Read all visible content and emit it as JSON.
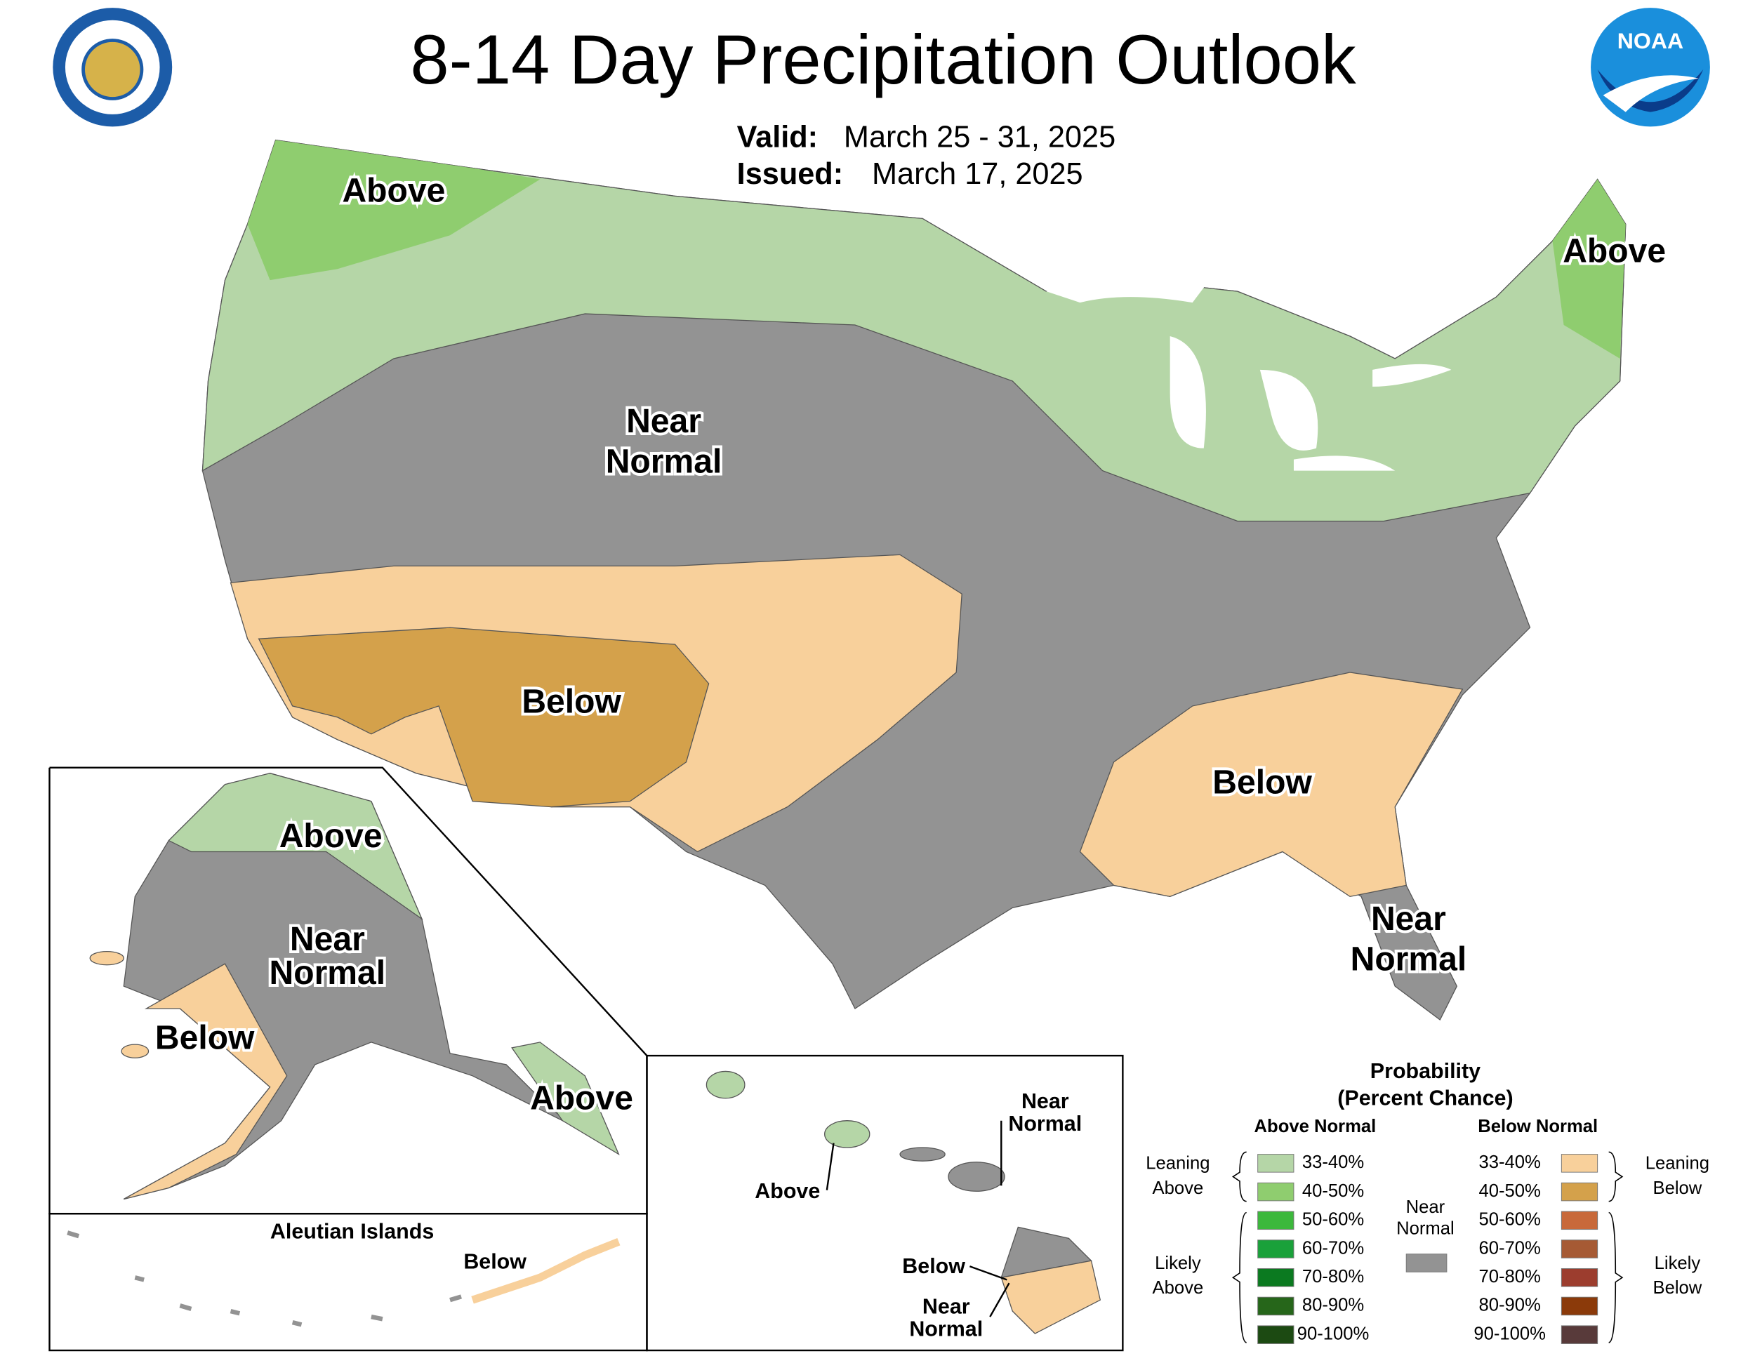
{
  "header": {
    "title": "8-14 Day Precipitation Outlook",
    "valid_label": "Valid:",
    "valid": "March 25 - 31, 2025",
    "issued_label": "Issued:",
    "issued": "March 17, 2025",
    "logo": "NOAA"
  },
  "map": {
    "conus": [
      {
        "lines": [
          "Above"
        ]
      },
      {
        "lines": [
          "Above"
        ]
      },
      {
        "lines": [
          "Near",
          "Normal"
        ]
      },
      {
        "lines": [
          "Below"
        ]
      },
      {
        "lines": [
          "Below"
        ]
      },
      {
        "lines": [
          "Near",
          "Normal"
        ]
      }
    ],
    "alaska": [
      {
        "lines": [
          "Above"
        ]
      },
      {
        "lines": [
          "Near",
          "Normal"
        ]
      },
      {
        "lines": [
          "Below"
        ]
      },
      {
        "lines": [
          "Above"
        ]
      }
    ],
    "aleutian": {
      "title": "Aleutian Islands",
      "labels": [
        {
          "lines": [
            "Below"
          ]
        }
      ]
    },
    "hawaii": [
      {
        "lines": [
          "Near",
          "Normal"
        ]
      },
      {
        "lines": [
          "Above"
        ]
      },
      {
        "lines": [
          "Below"
        ]
      },
      {
        "lines": [
          "Near",
          "Normal"
        ]
      }
    ]
  },
  "legend": {
    "title": "Probability",
    "subtitle": "(Percent Chance)",
    "above_normal": {
      "title": "Above Normal",
      "leaning": [
        "Leaning",
        "Above"
      ],
      "likely": [
        "Likely",
        "Above"
      ],
      "items": [
        {
          "range": "33-40%",
          "color": "#b5d6a7"
        },
        {
          "range": "40-50%",
          "color": "#8fcd6f"
        },
        {
          "range": "50-60%",
          "color": "#3cb83c"
        },
        {
          "range": "60-70%",
          "color": "#1aa13a"
        },
        {
          "range": "70-80%",
          "color": "#0b7a20"
        },
        {
          "range": "80-90%",
          "color": "#26661a"
        },
        {
          "range": "90-100%",
          "color": "#1c4a12"
        }
      ]
    },
    "below_normal": {
      "title": "Below Normal",
      "leaning": [
        "Leaning",
        "Below"
      ],
      "likely": [
        "Likely",
        "Below"
      ],
      "items": [
        {
          "range": "33-40%",
          "color": "#f8d09b"
        },
        {
          "range": "40-50%",
          "color": "#d4a14b"
        },
        {
          "range": "50-60%",
          "color": "#c8693a"
        },
        {
          "range": "60-70%",
          "color": "#a65a34"
        },
        {
          "range": "70-80%",
          "color": "#9c3d2e"
        },
        {
          "range": "80-90%",
          "color": "#8b3a0a"
        },
        {
          "range": "90-100%",
          "color": "#583a3a"
        }
      ]
    },
    "near_normal": {
      "label": [
        "Near",
        "Normal"
      ],
      "color": "#939393"
    }
  }
}
